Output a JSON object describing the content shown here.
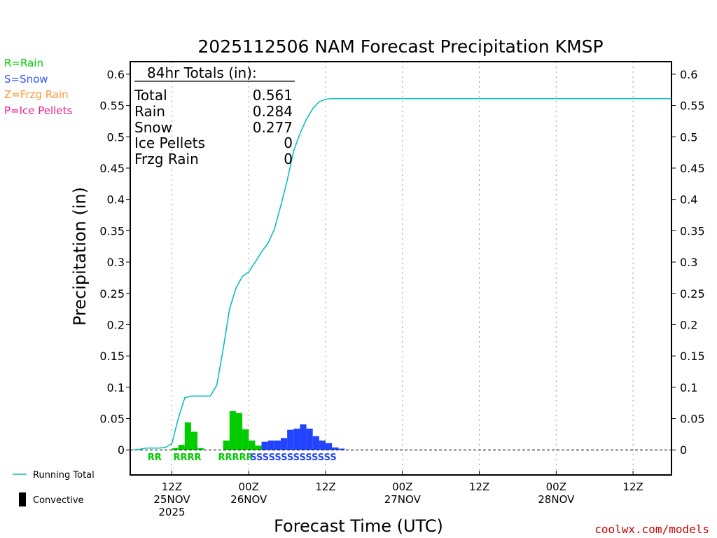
{
  "chart_data": {
    "type": "bar",
    "title": "2025112506 NAM Forecast Precipitation KMSP",
    "xlabel": "Forecast Time (UTC)",
    "ylabel": "Precipitation (in)",
    "ylim": [
      -0.04,
      0.62
    ],
    "yticks": [
      "0.6",
      "0.55",
      "0.5",
      "0.45",
      "0.4",
      "0.35",
      "0.3",
      "0.25",
      "0.2",
      "0.15",
      "0.1",
      "0.05",
      "0"
    ],
    "x_unit": "hours since 2025-11-25 06Z",
    "xlim": [
      -0.5,
      84
    ],
    "xticks": [
      {
        "hour": 6,
        "line1": "12Z",
        "line2": "25NOV",
        "line3": "2025"
      },
      {
        "hour": 18,
        "line1": "00Z",
        "line2": "26NOV",
        "line3": ""
      },
      {
        "hour": 30,
        "line1": "12Z",
        "line2": "",
        "line3": ""
      },
      {
        "hour": 42,
        "line1": "00Z",
        "line2": "27NOV",
        "line3": ""
      },
      {
        "hour": 54,
        "line1": "12Z",
        "line2": "",
        "line3": ""
      },
      {
        "hour": 66,
        "line1": "00Z",
        "line2": "28NOV",
        "line3": ""
      },
      {
        "hour": 78,
        "line1": "12Z",
        "line2": "",
        "line3": ""
      }
    ],
    "bars": [
      {
        "hour": 6,
        "value": 0.003,
        "type": "R"
      },
      {
        "hour": 7,
        "value": 0.008,
        "type": "R"
      },
      {
        "hour": 8,
        "value": 0.044,
        "type": "R"
      },
      {
        "hour": 9,
        "value": 0.029,
        "type": "R"
      },
      {
        "hour": 10,
        "value": 0.003,
        "type": "R"
      },
      {
        "hour": 14,
        "value": 0.015,
        "type": "R"
      },
      {
        "hour": 15,
        "value": 0.062,
        "type": "R"
      },
      {
        "hour": 16,
        "value": 0.059,
        "type": "R"
      },
      {
        "hour": 17,
        "value": 0.033,
        "type": "R"
      },
      {
        "hour": 18,
        "value": 0.015,
        "type": "R"
      },
      {
        "hour": 19,
        "value": 0.007,
        "type": "R"
      },
      {
        "hour": 20,
        "value": 0.013,
        "type": "S"
      },
      {
        "hour": 21,
        "value": 0.015,
        "type": "S"
      },
      {
        "hour": 22,
        "value": 0.015,
        "type": "S"
      },
      {
        "hour": 23,
        "value": 0.019,
        "type": "S"
      },
      {
        "hour": 24,
        "value": 0.032,
        "type": "S"
      },
      {
        "hour": 25,
        "value": 0.034,
        "type": "S"
      },
      {
        "hour": 26,
        "value": 0.041,
        "type": "S"
      },
      {
        "hour": 27,
        "value": 0.034,
        "type": "S"
      },
      {
        "hour": 28,
        "value": 0.022,
        "type": "S"
      },
      {
        "hour": 29,
        "value": 0.015,
        "type": "S"
      },
      {
        "hour": 30,
        "value": 0.011,
        "type": "S"
      },
      {
        "hour": 31,
        "value": 0.004,
        "type": "S"
      },
      {
        "hour": 32,
        "value": 0.002,
        "type": "S"
      }
    ],
    "running_total": [
      [
        0,
        0
      ],
      [
        1,
        0.001
      ],
      [
        2,
        0.003
      ],
      [
        3,
        0.003
      ],
      [
        4,
        0.003
      ],
      [
        5,
        0.004
      ],
      [
        6,
        0.01
      ],
      [
        7,
        0.05
      ],
      [
        8,
        0.083
      ],
      [
        9,
        0.086
      ],
      [
        10,
        0.086
      ],
      [
        11,
        0.086
      ],
      [
        12,
        0.086
      ],
      [
        13,
        0.103
      ],
      [
        14,
        0.16
      ],
      [
        15,
        0.225
      ],
      [
        16,
        0.258
      ],
      [
        17,
        0.277
      ],
      [
        18,
        0.284
      ],
      [
        19,
        0.3
      ],
      [
        20,
        0.316
      ],
      [
        21,
        0.33
      ],
      [
        22,
        0.352
      ],
      [
        23,
        0.39
      ],
      [
        24,
        0.43
      ],
      [
        25,
        0.477
      ],
      [
        26,
        0.505
      ],
      [
        27,
        0.528
      ],
      [
        28,
        0.545
      ],
      [
        29,
        0.556
      ],
      [
        30,
        0.56
      ],
      [
        31,
        0.561
      ],
      [
        32,
        0.561
      ],
      [
        84,
        0.561
      ]
    ],
    "ptype_strings": [
      {
        "start_hour": 2,
        "text": "RR",
        "type": "R"
      },
      {
        "start_hour": 6,
        "text": "RRRR",
        "type": "R"
      },
      {
        "start_hour": 13,
        "text": "RRRRR",
        "type": "R"
      },
      {
        "start_hour": 18,
        "text": "SSSSSSSSSSSSSS",
        "type": "S"
      }
    ],
    "totals_box": {
      "header": "84hr Totals (in):",
      "rows": [
        {
          "label": "Total",
          "value": "0.561"
        },
        {
          "label": "Rain",
          "value": "0.284"
        },
        {
          "label": "Snow",
          "value": "0.277"
        },
        {
          "label": "Ice Pellets",
          "value": "0"
        },
        {
          "label": "Frzg Rain",
          "value": "0"
        }
      ]
    },
    "ptype_legend": [
      {
        "text": "R=Rain",
        "color": "#00cc00"
      },
      {
        "text": "S=Snow",
        "color": "#3355ff"
      },
      {
        "text": "Z=Frzg Rain",
        "color": "#ff9933"
      },
      {
        "text": "P=Ice Pellets",
        "color": "#ee1e8c"
      }
    ],
    "series_legend": {
      "running_total": "Running Total",
      "convective": "Convective"
    },
    "colors": {
      "rain": "#00cc00",
      "snow": "#2244ff",
      "running_total": "#00bbbb",
      "credit": "#cc0000"
    },
    "credit": "coolwx.com/models"
  }
}
